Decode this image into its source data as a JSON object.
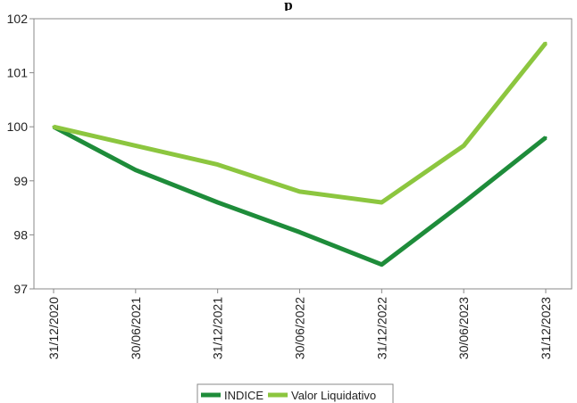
{
  "chart_data": {
    "type": "line",
    "title": "p",
    "x": [
      "31/12/2020",
      "30/06/2021",
      "31/12/2021",
      "30/06/2022",
      "31/12/2022",
      "30/06/2023",
      "31/12/2023"
    ],
    "series": [
      {
        "name": "INDICE",
        "color": "#1e8c3a",
        "values": [
          100.0,
          99.2,
          98.6,
          98.05,
          97.45,
          98.6,
          99.8
        ]
      },
      {
        "name": "Valor Liquidativo",
        "color": "#8cc63f",
        "values": [
          100.0,
          99.65,
          99.3,
          98.8,
          98.6,
          99.65,
          101.55
        ]
      }
    ],
    "ylim": [
      97,
      102
    ],
    "yticks": [
      97,
      98,
      99,
      100,
      101,
      102
    ],
    "ytick_labels": [
      "97",
      "98",
      "99",
      "100",
      "101",
      "102"
    ],
    "legend": "bottom",
    "grid": false
  }
}
